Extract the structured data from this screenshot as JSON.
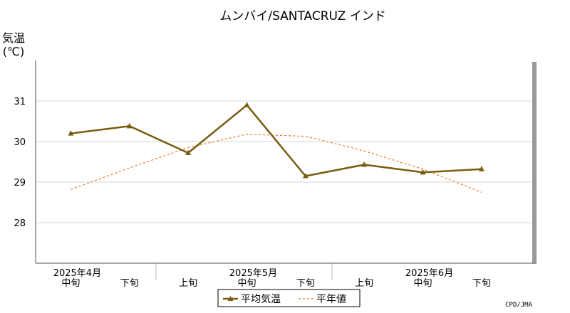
{
  "chart_data": {
    "type": "line",
    "title": "ムンバイ/SANTACRUZ インド",
    "ylabel_line1": "気温",
    "ylabel_line2": "(℃)",
    "ylim": [
      27,
      32
    ],
    "yticks": [
      28,
      29,
      30,
      31
    ],
    "categories": [
      "中旬",
      "下旬",
      "上旬",
      "中旬",
      "下旬",
      "上旬",
      "中旬",
      "下旬"
    ],
    "month_labels": [
      {
        "label": "2025年4月",
        "category_index": 0
      },
      {
        "label": "2025年5月",
        "category_index": 3
      },
      {
        "label": "2025年6月",
        "category_index": 6
      }
    ],
    "series": [
      {
        "name": "平均気温",
        "values": [
          30.2,
          30.38,
          29.72,
          30.9,
          29.15,
          29.43,
          29.24,
          29.32
        ],
        "color": "#7a5c10",
        "style": "solid",
        "marker": "triangle"
      },
      {
        "name": "平年値",
        "values": [
          28.82,
          29.35,
          29.85,
          30.18,
          30.13,
          29.77,
          29.32,
          28.75
        ],
        "color": "#ee7722",
        "style": "dashed"
      }
    ],
    "grid": true,
    "legend_position": "bottom-center",
    "credit": "CPD/JMA"
  }
}
